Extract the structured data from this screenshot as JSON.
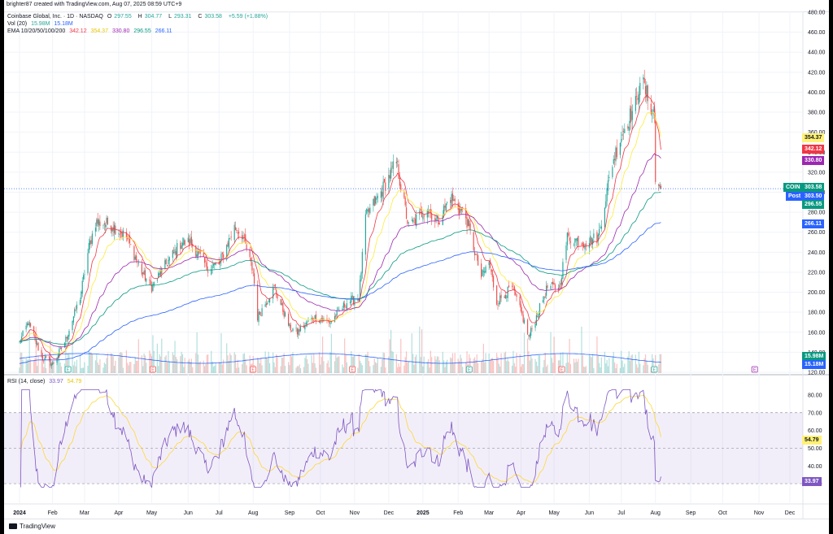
{
  "header": {
    "credit": "brighter87 created with TradingView.com, Aug 07, 2025 08:59 UTC+9"
  },
  "legend": {
    "symbol": "Coinbase Global, Inc. · 1D · NASDAQ",
    "ohlc": {
      "o_label": "O",
      "o": "297.55",
      "h_label": "H",
      "h": "304.77",
      "l_label": "L",
      "l": "293.31",
      "c_label": "C",
      "c": "303.58",
      "chg": "+5.59 (+1.88%)"
    },
    "vol": {
      "label": "Vol (20)",
      "v1": "15.98M",
      "v2": "15.18M"
    },
    "ema": {
      "label": "EMA 10/20/50/100/200",
      "v10": "342.12",
      "v20": "354.37",
      "v50": "330.80",
      "v100": "296.55",
      "v200": "266.11"
    },
    "rsi": {
      "label": "RSI (14, close)",
      "v1": "33.97",
      "v2": "54.79"
    }
  },
  "price_tags": {
    "ema20": "354.37",
    "ema10": "342.12",
    "ema50": "330.80",
    "coin_label": "COIN",
    "coin_value": "303.58",
    "post_label": "Post",
    "post_value": "303.50",
    "ema100": "296.55",
    "ema200": "266.11",
    "vol1": "15.98M",
    "vol2": "15.18M",
    "rsi_ma": "54.79",
    "rsi": "33.97"
  },
  "colors": {
    "up": "#26a69a",
    "down": "#ef5350",
    "ema10": "#f23645",
    "ema20": "#ffeb3b",
    "ema50": "#9c27b0",
    "ema100": "#089981",
    "ema200": "#2962ff",
    "rsi": "#7e57c2",
    "rsi_ma": "#fdd835",
    "price_line": "#2962ff"
  },
  "brand": "TradingView",
  "chart_data": [
    {
      "type": "candlestick",
      "title": "Coinbase Global, Inc. · 1D · NASDAQ",
      "ylim": [
        120,
        480
      ],
      "y_ticks": [
        "480.00",
        "460.00",
        "440.00",
        "420.00",
        "400.00",
        "380.00",
        "360.00",
        "340.00",
        "320.00",
        "300.00",
        "280.00",
        "260.00",
        "240.00",
        "220.00",
        "200.00",
        "180.00",
        "160.00",
        "140.00",
        "120.00"
      ],
      "x_ticks": [
        "2024",
        "Feb",
        "Mar",
        "Apr",
        "May",
        "Jun",
        "Jul",
        "Aug",
        "Sep",
        "Oct",
        "Nov",
        "Dec",
        "2025",
        "Feb",
        "Mar",
        "Apr",
        "May",
        "Jun",
        "Jul",
        "Aug",
        "Sep",
        "Oct",
        "Nov",
        "Dec"
      ],
      "x_dates": [
        "2024-01-02",
        "2024-02-01",
        "2024-03-01",
        "2024-04-01",
        "2024-05-01",
        "2024-06-03",
        "2024-07-01",
        "2024-08-01",
        "2024-09-03",
        "2024-10-01",
        "2024-11-01",
        "2024-12-02",
        "2025-01-02",
        "2025-02-03",
        "2025-03-03",
        "2025-04-01",
        "2025-05-01",
        "2025-06-02",
        "2025-07-01",
        "2025-08-01",
        "2025-09-02",
        "2025-10-01",
        "2025-11-03",
        "2025-12-01"
      ],
      "close_series": {
        "name": "close",
        "points": [
          [
            "2024-01-02",
            150
          ],
          [
            "2024-01-10",
            170
          ],
          [
            "2024-01-22",
            135
          ],
          [
            "2024-02-01",
            128
          ],
          [
            "2024-02-12",
            150
          ],
          [
            "2024-02-26",
            195
          ],
          [
            "2024-03-05",
            245
          ],
          [
            "2024-03-11",
            270
          ],
          [
            "2024-03-25",
            268
          ],
          [
            "2024-04-08",
            255
          ],
          [
            "2024-04-22",
            220
          ],
          [
            "2024-05-01",
            205
          ],
          [
            "2024-05-15",
            230
          ],
          [
            "2024-05-28",
            250
          ],
          [
            "2024-06-05",
            250
          ],
          [
            "2024-06-20",
            225
          ],
          [
            "2024-07-01",
            228
          ],
          [
            "2024-07-15",
            265
          ],
          [
            "2024-07-22",
            258
          ],
          [
            "2024-08-01",
            220
          ],
          [
            "2024-08-05",
            175
          ],
          [
            "2024-08-20",
            205
          ],
          [
            "2024-09-03",
            165
          ],
          [
            "2024-09-10",
            160
          ],
          [
            "2024-09-25",
            175
          ],
          [
            "2024-10-10",
            170
          ],
          [
            "2024-10-25",
            190
          ],
          [
            "2024-11-05",
            195
          ],
          [
            "2024-11-11",
            275
          ],
          [
            "2024-11-25",
            300
          ],
          [
            "2024-12-09",
            330
          ],
          [
            "2024-12-20",
            265
          ],
          [
            "2025-01-06",
            285
          ],
          [
            "2025-01-15",
            270
          ],
          [
            "2025-01-27",
            295
          ],
          [
            "2025-02-10",
            275
          ],
          [
            "2025-02-24",
            215
          ],
          [
            "2025-03-03",
            230
          ],
          [
            "2025-03-10",
            190
          ],
          [
            "2025-03-24",
            205
          ],
          [
            "2025-04-04",
            170
          ],
          [
            "2025-04-08",
            155
          ],
          [
            "2025-04-25",
            205
          ],
          [
            "2025-05-06",
            205
          ],
          [
            "2025-05-13",
            255
          ],
          [
            "2025-05-28",
            250
          ],
          [
            "2025-06-10",
            255
          ],
          [
            "2025-06-23",
            330
          ],
          [
            "2025-07-02",
            360
          ],
          [
            "2025-07-15",
            390
          ],
          [
            "2025-07-18",
            415
          ],
          [
            "2025-07-25",
            395
          ],
          [
            "2025-07-31",
            377
          ],
          [
            "2025-08-01",
            311
          ],
          [
            "2025-08-06",
            303.58
          ]
        ]
      },
      "ema": [
        {
          "name": "EMA 10",
          "last": 342.12
        },
        {
          "name": "EMA 20",
          "last": 354.37
        },
        {
          "name": "EMA 50",
          "last": 330.8
        },
        {
          "name": "EMA 100",
          "last": 296.55
        },
        {
          "name": "EMA 200",
          "last": 266.11
        }
      ],
      "volume": {
        "name": "Vol (20)",
        "last": [
          "15.98M",
          "15.18M"
        ]
      },
      "events": [
        "E",
        "E",
        "E",
        "E",
        "E",
        "E",
        "E",
        "E"
      ]
    },
    {
      "type": "line",
      "title": "RSI (14, close)",
      "ylim": [
        25,
        85
      ],
      "y_ticks": [
        "80.00",
        "70.00",
        "60.00",
        "50.00",
        "40.00",
        "30.00"
      ],
      "band": [
        30,
        70
      ],
      "series": [
        {
          "name": "RSI",
          "last": 33.97
        },
        {
          "name": "RSI MA",
          "last": 54.79
        }
      ]
    }
  ]
}
